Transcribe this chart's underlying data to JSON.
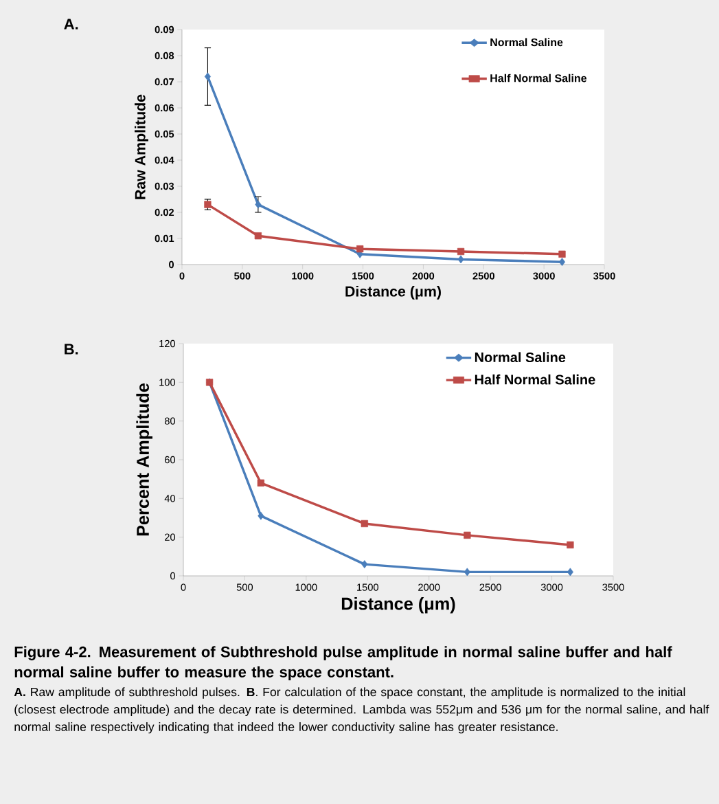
{
  "chart_data": [
    {
      "type": "line",
      "title": "A.",
      "xlabel": "Distance (μm)",
      "ylabel": "Raw Amplitude",
      "x": [
        213,
        631,
        1475,
        2311,
        3150
      ],
      "xlim": [
        0,
        3500
      ],
      "xticks": [
        0,
        500,
        1000,
        1500,
        2000,
        2500,
        3000,
        3500
      ],
      "ylim": [
        0,
        0.09
      ],
      "yticks": [
        0,
        0.01,
        0.02,
        0.03,
        0.04,
        0.05,
        0.06,
        0.07,
        0.08,
        0.09
      ],
      "legend": "top right",
      "line_style": "solid",
      "series": [
        {
          "name": "Normal Saline",
          "color": "#4a7ebb",
          "marker": "diamond",
          "values": [
            0.072,
            0.023,
            0.004,
            0.002,
            0.001
          ],
          "errors": [
            0.011,
            0.003,
            null,
            null,
            null
          ]
        },
        {
          "name": "Half Normal Saline",
          "color": "#be4b48",
          "marker": "square",
          "values": [
            0.023,
            0.011,
            0.006,
            0.005,
            0.004
          ],
          "errors": [
            0.002,
            null,
            null,
            null,
            null
          ]
        }
      ]
    },
    {
      "type": "line",
      "title": "B.",
      "xlabel": "Distance (μm)",
      "ylabel": "Percent Amplitude",
      "x": [
        213,
        631,
        1475,
        2311,
        3150
      ],
      "xlim": [
        0,
        3500
      ],
      "xticks": [
        0,
        500,
        1000,
        1500,
        2000,
        2500,
        3000,
        3500
      ],
      "ylim": [
        0,
        120
      ],
      "yticks": [
        0,
        20,
        40,
        60,
        80,
        100,
        120
      ],
      "legend": "top right",
      "line_style": "solid",
      "series": [
        {
          "name": "Normal Saline",
          "color": "#4a7ebb",
          "marker": "diamond",
          "values": [
            100,
            31,
            6,
            2,
            2
          ]
        },
        {
          "name": "Half Normal Saline",
          "color": "#be4b48",
          "marker": "square",
          "values": [
            100,
            48,
            27,
            21,
            16
          ]
        }
      ],
      "annotations": [
        "Figure 4-2. Measurement of Subthreshold pulse amplitude in normal saline buffer and half normal saline buffer to measure the space constant.",
        "**A.** Raw amplitude of subthreshold pulses. **B**. For calculation of the space constant, the amplitude is normalized to the initial (closest electrode amplitude) and the decay rate is determined. Lambda was 552μm and 536 μm for the normal saline, and half normal saline respectively indicating that indeed the lower conductivity saline has greater resistance."
      ]
    }
  ]
}
